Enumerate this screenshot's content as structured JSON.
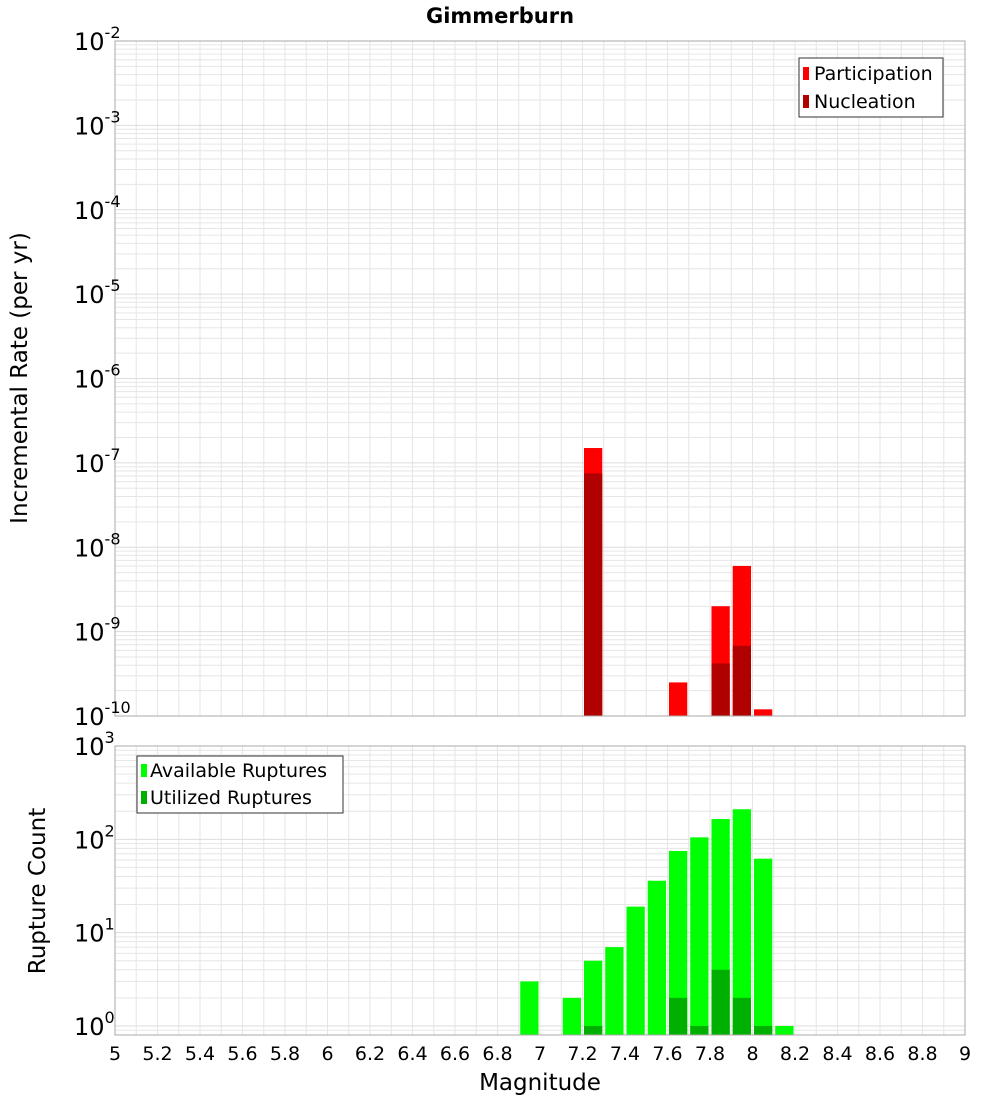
{
  "chart_data": [
    {
      "type": "bar",
      "title": "Gimmerburn",
      "ylabel": "Incremental Rate (per yr)",
      "xlabel": "",
      "xlim": [
        5,
        9
      ],
      "ylim": [
        1e-10,
        0.01
      ],
      "yscale": "log",
      "grid": true,
      "legend_position": "top-right",
      "y_ticks": [
        {
          "base": "10",
          "exp": "-10"
        },
        {
          "base": "10",
          "exp": "-9"
        },
        {
          "base": "10",
          "exp": "-8"
        },
        {
          "base": "10",
          "exp": "-7"
        },
        {
          "base": "10",
          "exp": "-6"
        },
        {
          "base": "10",
          "exp": "-5"
        },
        {
          "base": "10",
          "exp": "-4"
        },
        {
          "base": "10",
          "exp": "-3"
        },
        {
          "base": "10",
          "exp": "-2"
        }
      ],
      "series": [
        {
          "name": "Participation",
          "color": "#ff0000",
          "points": [
            {
              "x": 7.25,
              "y": 1.5e-07
            },
            {
              "x": 7.65,
              "y": 2.5e-10
            },
            {
              "x": 7.85,
              "y": 2e-09
            },
            {
              "x": 7.95,
              "y": 6e-09
            },
            {
              "x": 8.05,
              "y": 1.2e-10
            }
          ]
        },
        {
          "name": "Nucleation",
          "color": "#b00000",
          "points": [
            {
              "x": 7.25,
              "y": 7.5e-08
            },
            {
              "x": 7.85,
              "y": 4.2e-10
            },
            {
              "x": 7.95,
              "y": 6.8e-10
            }
          ]
        }
      ]
    },
    {
      "type": "bar",
      "ylabel": "Rupture Count",
      "xlabel": "Magnitude",
      "xlim": [
        5,
        9
      ],
      "ylim": [
        0.8,
        1000
      ],
      "yscale": "log",
      "grid": true,
      "legend_position": "top-left",
      "x_ticks": [
        "5",
        "5.2",
        "5.4",
        "5.6",
        "5.8",
        "6",
        "6.2",
        "6.4",
        "6.6",
        "6.8",
        "7",
        "7.2",
        "7.4",
        "7.6",
        "7.8",
        "8",
        "8.2",
        "8.4",
        "8.6",
        "8.8",
        "9"
      ],
      "y_ticks": [
        {
          "base": "10",
          "exp": "0"
        },
        {
          "base": "10",
          "exp": "1"
        },
        {
          "base": "10",
          "exp": "2"
        },
        {
          "base": "10",
          "exp": "3"
        }
      ],
      "series": [
        {
          "name": "Available Ruptures",
          "color": "#00ff00",
          "points": [
            {
              "x": 6.95,
              "y": 3
            },
            {
              "x": 7.15,
              "y": 2
            },
            {
              "x": 7.25,
              "y": 5
            },
            {
              "x": 7.35,
              "y": 7
            },
            {
              "x": 7.45,
              "y": 19
            },
            {
              "x": 7.55,
              "y": 36
            },
            {
              "x": 7.65,
              "y": 75
            },
            {
              "x": 7.75,
              "y": 105
            },
            {
              "x": 7.85,
              "y": 165
            },
            {
              "x": 7.95,
              "y": 210
            },
            {
              "x": 8.05,
              "y": 62
            },
            {
              "x": 8.15,
              "y": 1
            }
          ]
        },
        {
          "name": "Utilized Ruptures",
          "color": "#00b000",
          "points": [
            {
              "x": 7.25,
              "y": 1
            },
            {
              "x": 7.65,
              "y": 2
            },
            {
              "x": 7.75,
              "y": 1
            },
            {
              "x": 7.85,
              "y": 4
            },
            {
              "x": 7.95,
              "y": 2
            },
            {
              "x": 8.05,
              "y": 1
            }
          ]
        }
      ]
    }
  ]
}
